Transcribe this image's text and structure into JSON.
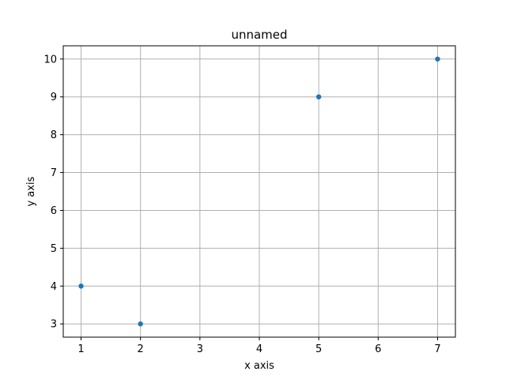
{
  "chart_data": {
    "type": "scatter",
    "title": "unnamed",
    "xlabel": "x axis",
    "ylabel": "y axis",
    "x": [
      1,
      2,
      5,
      7
    ],
    "y": [
      4,
      3,
      9,
      10
    ],
    "xlim": [
      0.7,
      7.3
    ],
    "ylim": [
      2.65,
      10.35
    ],
    "xticks": [
      1,
      2,
      3,
      4,
      5,
      6,
      7
    ],
    "yticks": [
      3,
      4,
      5,
      6,
      7,
      8,
      9,
      10
    ],
    "grid": true,
    "marker_color": "#1f77b4",
    "grid_color": "#b0b0b0"
  }
}
